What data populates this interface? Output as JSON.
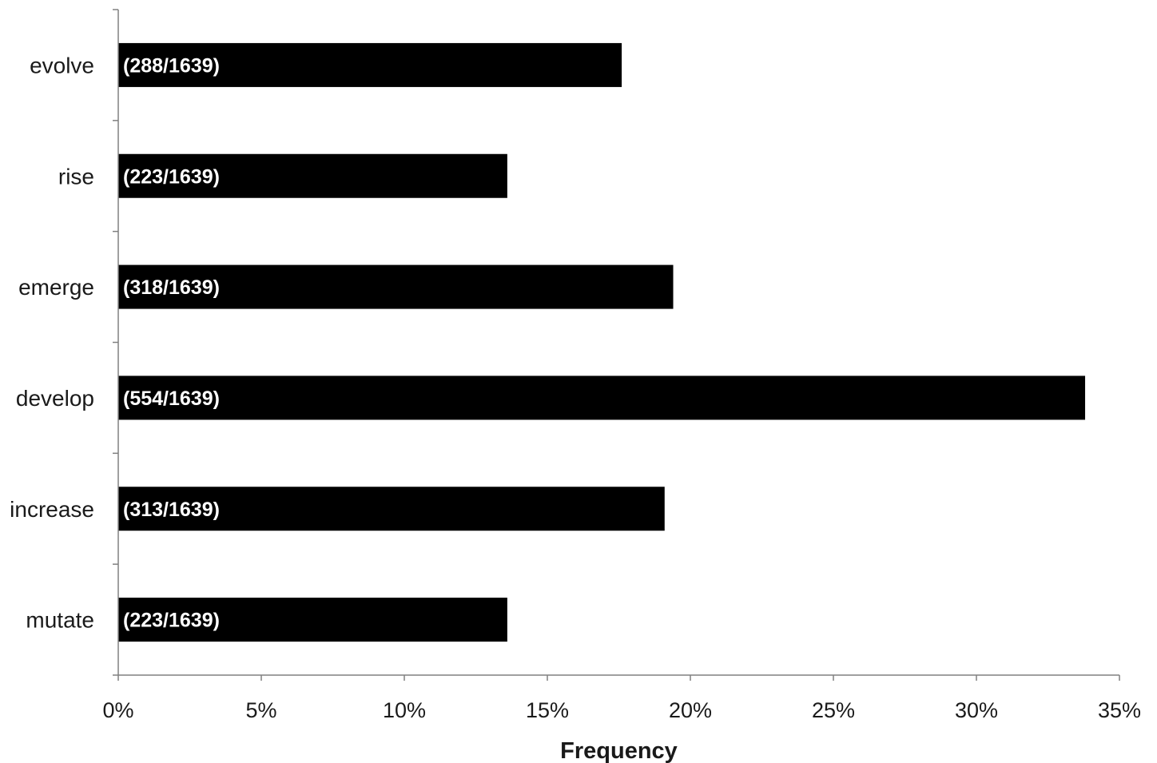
{
  "chart_data": {
    "type": "bar",
    "orientation": "horizontal",
    "title": "",
    "xlabel": "Frequency",
    "ylabel": "",
    "xlim": [
      0,
      35
    ],
    "x_tick_values": [
      0,
      5,
      10,
      15,
      20,
      25,
      30,
      35
    ],
    "x_tick_labels": [
      "0%",
      "5%",
      "10%",
      "15%",
      "20%",
      "25%",
      "30%",
      "35%"
    ],
    "grid": false,
    "legend": "none",
    "bar_color": "#000000",
    "bar_label_color": "#ffffff",
    "categories": [
      "evolve",
      "rise",
      "emerge",
      "develop",
      "increase",
      "mutate"
    ],
    "values": [
      17.6,
      13.6,
      19.4,
      33.8,
      19.1,
      13.6
    ],
    "data_labels": [
      "(288/1639)",
      "(223/1639)",
      "(318/1639)",
      "(554/1639)",
      "(313/1639)",
      "(223/1639)"
    ]
  }
}
